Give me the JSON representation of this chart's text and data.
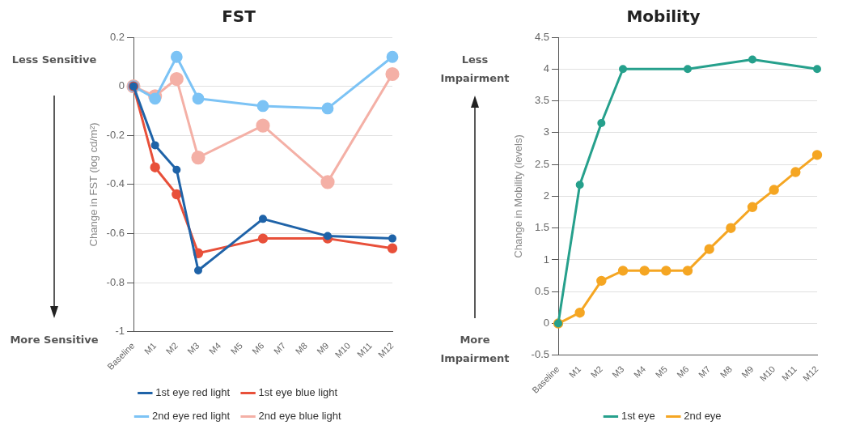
{
  "chart_data": [
    {
      "type": "line",
      "title": "FST",
      "ylabel": "Change in FST (log cd/m²)",
      "categories": [
        "Baseline",
        "M1",
        "M2",
        "M3",
        "M4",
        "M5",
        "M6",
        "M7",
        "M8",
        "M9",
        "M10",
        "M11",
        "M12"
      ],
      "series": [
        {
          "name": "1st eye red light",
          "color": "#1f63a8",
          "values": [
            0,
            -0.24,
            -0.34,
            -0.75,
            null,
            null,
            -0.54,
            null,
            null,
            -0.61,
            null,
            null,
            -0.62
          ]
        },
        {
          "name": "1st eye blue light",
          "color": "#e8503a",
          "values": [
            0,
            -0.33,
            -0.44,
            -0.68,
            null,
            null,
            -0.62,
            null,
            null,
            -0.62,
            null,
            null,
            -0.66
          ]
        },
        {
          "name": "2nd eye red light",
          "color": "#7cc3f5",
          "values": [
            0,
            -0.05,
            0.12,
            -0.05,
            null,
            null,
            -0.08,
            null,
            null,
            -0.09,
            null,
            null,
            0.12
          ]
        },
        {
          "name": "2nd eye blue light",
          "color": "#f4b0a6",
          "values": [
            0,
            -0.04,
            0.03,
            -0.29,
            null,
            null,
            -0.16,
            null,
            null,
            -0.39,
            null,
            null,
            0.05
          ]
        }
      ],
      "ylim": [
        -1,
        0.2
      ],
      "yticks": [
        -1,
        -0.8,
        -0.6,
        -0.4,
        -0.2,
        0,
        0.2
      ],
      "grid": "y",
      "legend": "bottom",
      "marker": "circle",
      "line_style": "solid",
      "annotations": [
        "Less Sensitive",
        "More Sensitive"
      ]
    },
    {
      "type": "line",
      "title": "Mobility",
      "ylabel": "Change in Mobility (levels)",
      "categories": [
        "Baseline",
        "M1",
        "M2",
        "M3",
        "M4",
        "M5",
        "M6",
        "M7",
        "M8",
        "M9",
        "M10",
        "M11",
        "M12"
      ],
      "series": [
        {
          "name": "1st eye",
          "color": "#26a08c",
          "values": [
            0,
            2.18,
            3.15,
            4.0,
            null,
            null,
            4.0,
            null,
            null,
            4.15,
            null,
            null,
            4.0
          ]
        },
        {
          "name": "2nd eye",
          "color": "#f5a623",
          "values": [
            0,
            0.17,
            0.67,
            0.83,
            0.83,
            0.83,
            0.83,
            1.17,
            1.5,
            1.83,
            2.1,
            2.38,
            2.65
          ]
        }
      ],
      "ylim": [
        -0.5,
        4.5
      ],
      "yticks": [
        -0.5,
        0,
        0.5,
        1,
        1.5,
        2,
        2.5,
        3,
        3.5,
        4,
        4.5
      ],
      "grid": "y",
      "legend": "bottom",
      "marker": "circle",
      "line_style": "solid",
      "annotations": [
        "Less Impairment",
        "More Impairment"
      ]
    }
  ]
}
